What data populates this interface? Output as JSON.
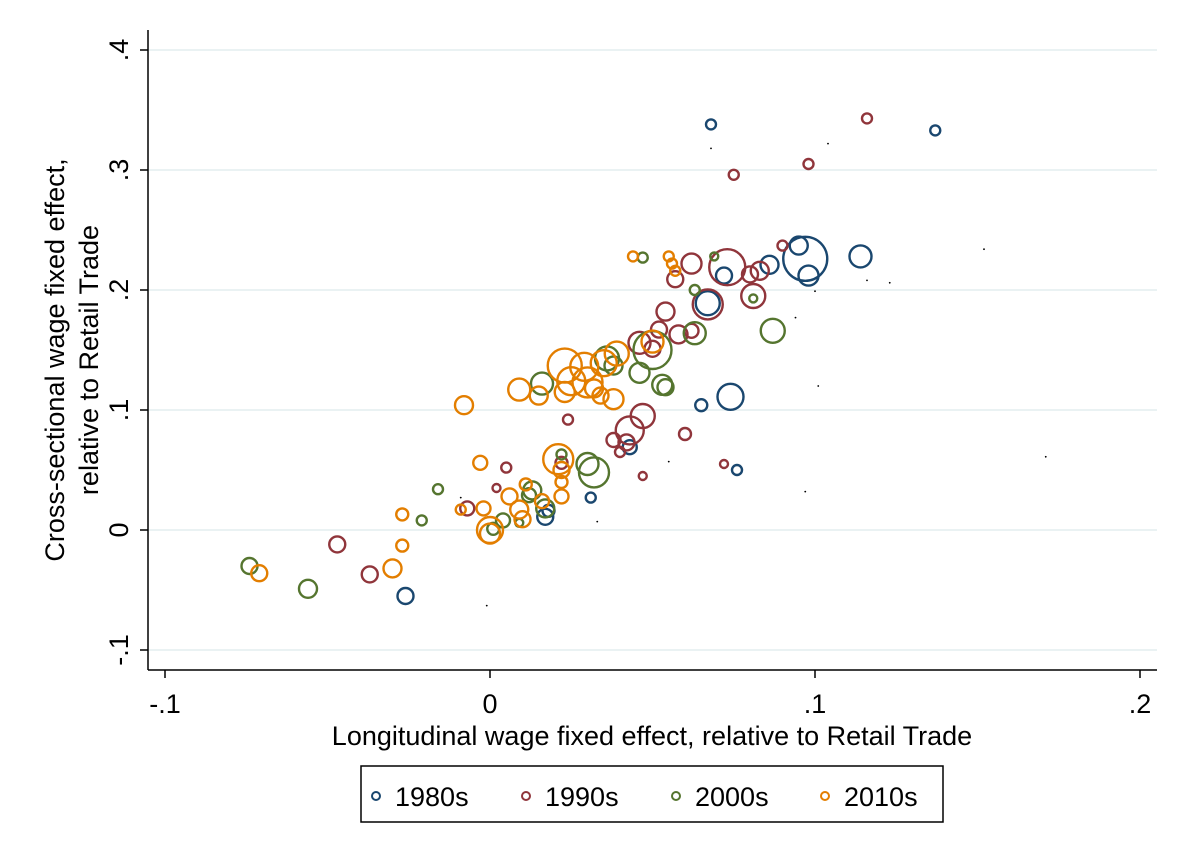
{
  "chart_data": {
    "type": "scatter",
    "xlabel": "Longitudinal wage fixed effect, relative to Retail Trade",
    "ylabel_lines": [
      "Cross-sectional wage fixed effect,",
      "relative to Retail Trade"
    ],
    "xlim": [
      -0.1,
      0.2
    ],
    "ylim": [
      -0.1,
      0.4
    ],
    "x_ticks": [
      {
        "value": -0.1,
        "label": "-.1"
      },
      {
        "value": 0,
        "label": "0"
      },
      {
        "value": 0.1,
        "label": ".1"
      },
      {
        "value": 0.2,
        "label": ".2"
      }
    ],
    "y_ticks": [
      {
        "value": -0.1,
        "label": "-.1"
      },
      {
        "value": 0,
        "label": "0"
      },
      {
        "value": 0.1,
        "label": ".1"
      },
      {
        "value": 0.2,
        "label": ".2"
      },
      {
        "value": 0.3,
        "label": ".3"
      },
      {
        "value": 0.4,
        "label": ".4"
      }
    ],
    "grid": "horizontal",
    "legend_placement": "bottom",
    "series": [
      {
        "name": "1980s",
        "color": "#1a476f",
        "points": [
          [
            0.068,
            0.338,
            5
          ],
          [
            0.137,
            0.333,
            5
          ],
          [
            0.097,
            0.226,
            22
          ],
          [
            0.095,
            0.237,
            9
          ],
          [
            0.098,
            0.212,
            10
          ],
          [
            0.114,
            0.228,
            11
          ],
          [
            0.086,
            0.221,
            9
          ],
          [
            0.072,
            0.212,
            8
          ],
          [
            0.067,
            0.189,
            12
          ],
          [
            0.074,
            0.111,
            13
          ],
          [
            0.065,
            0.104,
            6
          ],
          [
            0.076,
            0.05,
            5
          ],
          [
            0.043,
            0.069,
            7
          ],
          [
            0.031,
            0.027,
            5
          ],
          [
            0.017,
            0.011,
            8
          ],
          [
            0.018,
            0.016,
            6
          ],
          [
            -0.026,
            -0.055,
            8
          ]
        ]
      },
      {
        "name": "1990s",
        "color": "#90353b",
        "points": [
          [
            0.116,
            0.343,
            5
          ],
          [
            0.098,
            0.305,
            5
          ],
          [
            0.075,
            0.296,
            5
          ],
          [
            0.073,
            0.219,
            18
          ],
          [
            0.083,
            0.216,
            9
          ],
          [
            0.08,
            0.213,
            8
          ],
          [
            0.09,
            0.237,
            5
          ],
          [
            0.062,
            0.222,
            10
          ],
          [
            0.057,
            0.209,
            8
          ],
          [
            0.067,
            0.188,
            15
          ],
          [
            0.081,
            0.195,
            12
          ],
          [
            0.054,
            0.182,
            9
          ],
          [
            0.058,
            0.163,
            9
          ],
          [
            0.052,
            0.167,
            8
          ],
          [
            0.046,
            0.156,
            11
          ],
          [
            0.05,
            0.151,
            8
          ],
          [
            0.062,
            0.166,
            7
          ],
          [
            0.047,
            0.095,
            12
          ],
          [
            0.043,
            0.083,
            14
          ],
          [
            0.038,
            0.075,
            7
          ],
          [
            0.06,
            0.08,
            6
          ],
          [
            0.04,
            0.065,
            5
          ],
          [
            0.042,
            0.073,
            8
          ],
          [
            0.024,
            0.092,
            5
          ],
          [
            0.022,
            0.056,
            6
          ],
          [
            0.005,
            0.052,
            5
          ],
          [
            0.002,
            0.035,
            4
          ],
          [
            0.072,
            0.055,
            4
          ],
          [
            0.047,
            0.045,
            4
          ],
          [
            -0.047,
            -0.012,
            8
          ],
          [
            -0.037,
            -0.037,
            8
          ],
          [
            -0.007,
            0.018,
            7
          ]
        ]
      },
      {
        "name": "2000s",
        "color": "#55752f",
        "points": [
          [
            0.047,
            0.227,
            5
          ],
          [
            0.069,
            0.228,
            4
          ],
          [
            0.063,
            0.2,
            5
          ],
          [
            0.087,
            0.166,
            12
          ],
          [
            0.063,
            0.164,
            11
          ],
          [
            0.05,
            0.15,
            19
          ],
          [
            0.036,
            0.143,
            12
          ],
          [
            0.038,
            0.137,
            9
          ],
          [
            0.016,
            0.122,
            11
          ],
          [
            0.046,
            0.131,
            10
          ],
          [
            0.053,
            0.121,
            10
          ],
          [
            0.054,
            0.119,
            8
          ],
          [
            0.032,
            0.048,
            15
          ],
          [
            0.03,
            0.055,
            11
          ],
          [
            0.022,
            0.063,
            5
          ],
          [
            0.013,
            0.033,
            9
          ],
          [
            0.012,
            0.029,
            7
          ],
          [
            0.017,
            0.018,
            9
          ],
          [
            0.009,
            0.006,
            4
          ],
          [
            0.004,
            0.008,
            7
          ],
          [
            0.001,
            0.001,
            6
          ],
          [
            -0.016,
            0.034,
            5
          ],
          [
            -0.021,
            0.008,
            5
          ],
          [
            -0.074,
            -0.03,
            8
          ],
          [
            -0.056,
            -0.049,
            9
          ],
          [
            0.081,
            0.193,
            4
          ]
        ]
      },
      {
        "name": "2010s",
        "color": "#e37e00",
        "points": [
          [
            0.044,
            0.228,
            5
          ],
          [
            0.055,
            0.228,
            5
          ],
          [
            0.056,
            0.222,
            5
          ],
          [
            0.057,
            0.216,
            5
          ],
          [
            0.05,
            0.157,
            11
          ],
          [
            0.039,
            0.147,
            12
          ],
          [
            0.035,
            0.139,
            13
          ],
          [
            0.023,
            0.137,
            17
          ],
          [
            0.029,
            0.136,
            14
          ],
          [
            0.03,
            0.123,
            15
          ],
          [
            0.025,
            0.124,
            14
          ],
          [
            0.023,
            0.115,
            10
          ],
          [
            0.032,
            0.118,
            9
          ],
          [
            0.034,
            0.112,
            8
          ],
          [
            0.038,
            0.109,
            10
          ],
          [
            0.015,
            0.112,
            9
          ],
          [
            0.009,
            0.117,
            11
          ],
          [
            -0.008,
            0.104,
            9
          ],
          [
            0.021,
            0.059,
            15
          ],
          [
            0.022,
            0.05,
            8
          ],
          [
            0.022,
            0.04,
            6
          ],
          [
            0.022,
            0.028,
            7
          ],
          [
            0.016,
            0.024,
            7
          ],
          [
            0.011,
            0.038,
            6
          ],
          [
            0.006,
            0.028,
            8
          ],
          [
            0.009,
            0.017,
            9
          ],
          [
            0.01,
            0.009,
            8
          ],
          [
            -0.003,
            0.056,
            7
          ],
          [
            -0.002,
            0.018,
            7
          ],
          [
            0.0,
            0.0,
            13
          ],
          [
            0.0,
            -0.003,
            10
          ],
          [
            -0.009,
            0.017,
            5
          ],
          [
            -0.027,
            0.013,
            6
          ],
          [
            -0.027,
            -0.013,
            6
          ],
          [
            -0.03,
            -0.032,
            9
          ],
          [
            -0.071,
            -0.036,
            8
          ]
        ]
      }
    ],
    "unlabeled_dots": [
      [
        0.068,
        0.318
      ],
      [
        0.104,
        0.322
      ],
      [
        0.152,
        0.234
      ],
      [
        0.116,
        0.208
      ],
      [
        0.123,
        0.206
      ],
      [
        0.1,
        0.199
      ],
      [
        0.094,
        0.177
      ],
      [
        0.101,
        0.12
      ],
      [
        0.171,
        0.061
      ],
      [
        0.097,
        0.032
      ],
      [
        -0.001,
        -0.063
      ],
      [
        0.055,
        0.057
      ],
      [
        0.033,
        0.007
      ],
      [
        -0.009,
        0.027
      ]
    ],
    "dot_color": "#000000"
  }
}
